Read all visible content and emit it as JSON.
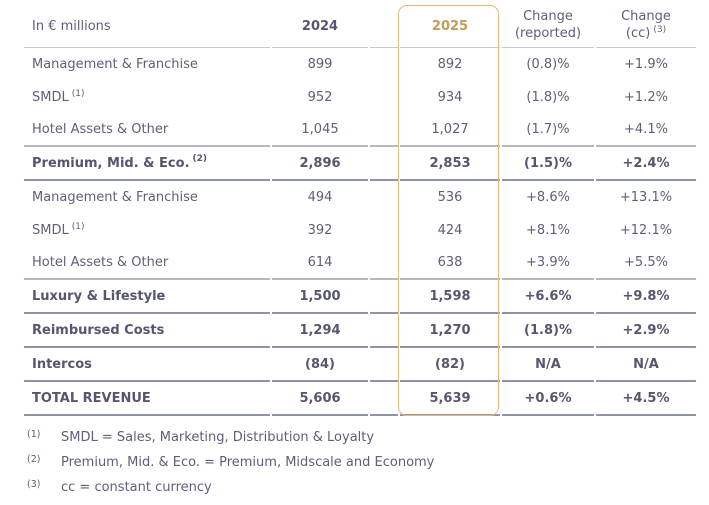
{
  "colors": {
    "text": "#5e5f7a",
    "text_bold": "#55566f",
    "accent_gold": "#c49a55",
    "highlight_border_gold": "#e2bb7d",
    "rule_light": "#b5b6c0",
    "rule_dark": "#9193aa",
    "header_underline": "#c8c9d1",
    "background": "#ffffff"
  },
  "table": {
    "header": {
      "unit": "In € millions",
      "col_2024": "2024",
      "col_2025": "2025",
      "change_reported": {
        "line1": "Change",
        "line2": "(reported)"
      },
      "change_cc": {
        "line1": "Change",
        "line2": "(cc)",
        "sup": "(3)"
      }
    },
    "rows": [
      {
        "label": "Management & Franchise",
        "sup": "",
        "v2024": "899",
        "v2025": "892",
        "change_reported": "(0.8)%",
        "change_cc": "+1.9%",
        "bold": false,
        "rule": ""
      },
      {
        "label": "SMDL",
        "sup": "(1)",
        "v2024": "952",
        "v2025": "934",
        "change_reported": "(1.8)%",
        "change_cc": "+1.2%",
        "bold": false,
        "rule": ""
      },
      {
        "label": "Hotel Assets & Other",
        "sup": "",
        "v2024": "1,045",
        "v2025": "1,027",
        "change_reported": "(1.7)%",
        "change_cc": "+4.1%",
        "bold": false,
        "rule": "light"
      },
      {
        "label": "Premium, Mid. & Eco.",
        "sup": "(2)",
        "v2024": "2,896",
        "v2025": "2,853",
        "change_reported": "(1.5)%",
        "change_cc": "+2.4%",
        "bold": true,
        "rule": "dark"
      },
      {
        "label": "Management & Franchise",
        "sup": "",
        "v2024": "494",
        "v2025": "536",
        "change_reported": "+8.6%",
        "change_cc": "+13.1%",
        "bold": false,
        "rule": ""
      },
      {
        "label": "SMDL",
        "sup": "(1)",
        "v2024": "392",
        "v2025": "424",
        "change_reported": "+8.1%",
        "change_cc": "+12.1%",
        "bold": false,
        "rule": ""
      },
      {
        "label": "Hotel Assets & Other",
        "sup": "",
        "v2024": "614",
        "v2025": "638",
        "change_reported": "+3.9%",
        "change_cc": "+5.5%",
        "bold": false,
        "rule": "light"
      },
      {
        "label": "Luxury & Lifestyle",
        "sup": "",
        "v2024": "1,500",
        "v2025": "1,598",
        "change_reported": "+6.6%",
        "change_cc": "+9.8%",
        "bold": true,
        "rule": "dark"
      },
      {
        "label": "Reimbursed Costs",
        "sup": "",
        "v2024": "1,294",
        "v2025": "1,270",
        "change_reported": "(1.8)%",
        "change_cc": "+2.9%",
        "bold": true,
        "rule": "dark"
      },
      {
        "label": "Intercos",
        "sup": "",
        "v2024": "(84)",
        "v2025": "(82)",
        "change_reported": "N/A",
        "change_cc": "N/A",
        "bold": true,
        "rule": "dark"
      },
      {
        "label": "TOTAL REVENUE",
        "sup": "",
        "v2024": "5,606",
        "v2025": "5,639",
        "change_reported": "+0.6%",
        "change_cc": "+4.5%",
        "bold": true,
        "rule": "dark"
      }
    ]
  },
  "footnotes": [
    {
      "sup": "(1)",
      "text": "SMDL = Sales, Marketing, Distribution & Loyalty"
    },
    {
      "sup": "(2)",
      "text": "Premium, Mid. & Eco. = Premium, Midscale and Economy"
    },
    {
      "sup": "(3)",
      "text": "cc = constant currency"
    }
  ]
}
